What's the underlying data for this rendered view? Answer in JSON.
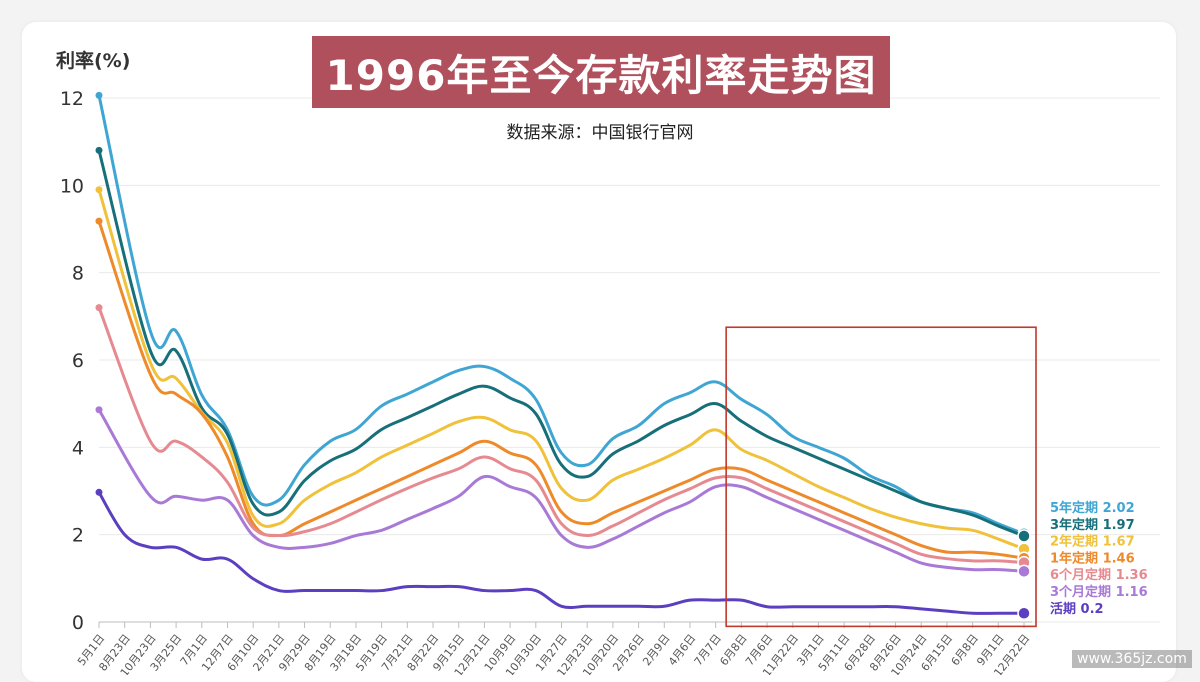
{
  "chart_data": {
    "type": "line",
    "title": "1996年至今存款利率走势图",
    "subtitle": "数据来源：中国银行官网",
    "ylabel": "利率(%)",
    "xlabel": "",
    "ylim": [
      0,
      12
    ],
    "y_ticks": [
      "0",
      "2",
      "4",
      "6",
      "8",
      "10",
      "12"
    ],
    "grid": true,
    "legend": "end-labels-right",
    "x_tick_labels": [
      "5月1日",
      "8月23日",
      "10月23日",
      "3月25日",
      "7月1日",
      "12月7日",
      "6月10日",
      "2月21日",
      "9月29日",
      "8月19日",
      "3月18日",
      "5月19日",
      "7月21日",
      "8月22日",
      "9月15日",
      "12月21日",
      "10月9日",
      "10月30日",
      "1月27日",
      "12月23日",
      "10月20日",
      "2月26日",
      "2月9日",
      "4月6日",
      "7月7日",
      "6月8日",
      "7月6日",
      "11月22日",
      "3月1日",
      "5月11日",
      "6月28日",
      "8月26日",
      "10月24日",
      "6月15日",
      "6月8日",
      "9月1日",
      "12月22日"
    ],
    "highlight_box": {
      "x_range_fraction": [
        0.678,
        1.0
      ],
      "y_range": [
        -0.1,
        6.75
      ],
      "color": "#c0392b"
    },
    "series": [
      {
        "name": "5年定期",
        "end_label": "2.02",
        "color": "#3fa6d3",
        "points": [
          [
            0,
            12.06
          ],
          [
            2,
            6.66
          ],
          [
            3,
            6.66
          ],
          [
            4,
            5.2
          ],
          [
            5,
            4.4
          ],
          [
            6,
            2.88
          ],
          [
            7,
            2.79
          ],
          [
            8,
            3.6
          ],
          [
            9,
            4.14
          ],
          [
            10,
            4.41
          ],
          [
            11,
            4.95
          ],
          [
            12,
            5.22
          ],
          [
            13,
            5.5
          ],
          [
            14,
            5.76
          ],
          [
            15,
            5.85
          ],
          [
            16,
            5.58
          ],
          [
            17,
            5.1
          ],
          [
            18,
            3.87
          ],
          [
            19,
            3.6
          ],
          [
            20,
            4.2
          ],
          [
            21,
            4.5
          ],
          [
            22,
            5.0
          ],
          [
            23,
            5.25
          ],
          [
            24,
            5.5
          ],
          [
            25,
            5.1
          ],
          [
            26,
            4.75
          ],
          [
            27,
            4.25
          ],
          [
            28,
            4.0
          ],
          [
            29,
            3.75
          ],
          [
            30,
            3.35
          ],
          [
            31,
            3.1
          ],
          [
            32,
            2.75
          ],
          [
            33,
            2.6
          ],
          [
            34,
            2.5
          ],
          [
            35,
            2.25
          ],
          [
            36,
            2.02
          ]
        ]
      },
      {
        "name": "3年定期",
        "end_label": "1.97",
        "color": "#176f7a",
        "points": [
          [
            0,
            10.8
          ],
          [
            2,
            6.21
          ],
          [
            3,
            6.21
          ],
          [
            4,
            4.9
          ],
          [
            5,
            4.3
          ],
          [
            6,
            2.7
          ],
          [
            7,
            2.52
          ],
          [
            8,
            3.24
          ],
          [
            9,
            3.69
          ],
          [
            10,
            3.96
          ],
          [
            11,
            4.41
          ],
          [
            12,
            4.68
          ],
          [
            13,
            4.95
          ],
          [
            14,
            5.22
          ],
          [
            15,
            5.4
          ],
          [
            16,
            5.13
          ],
          [
            17,
            4.77
          ],
          [
            18,
            3.6
          ],
          [
            19,
            3.33
          ],
          [
            20,
            3.85
          ],
          [
            21,
            4.15
          ],
          [
            22,
            4.5
          ],
          [
            23,
            4.75
          ],
          [
            24,
            5.0
          ],
          [
            25,
            4.6
          ],
          [
            26,
            4.25
          ],
          [
            27,
            4.0
          ],
          [
            28,
            3.75
          ],
          [
            29,
            3.5
          ],
          [
            30,
            3.25
          ],
          [
            31,
            3.0
          ],
          [
            32,
            2.75
          ],
          [
            33,
            2.6
          ],
          [
            34,
            2.45
          ],
          [
            35,
            2.2
          ],
          [
            36,
            1.97
          ]
        ]
      },
      {
        "name": "2年定期",
        "end_label": "1.67",
        "color": "#f0c13a",
        "points": [
          [
            0,
            9.9
          ],
          [
            2,
            5.94
          ],
          [
            3,
            5.58
          ],
          [
            4,
            4.8
          ],
          [
            5,
            4.1
          ],
          [
            6,
            2.43
          ],
          [
            7,
            2.25
          ],
          [
            8,
            2.79
          ],
          [
            9,
            3.15
          ],
          [
            10,
            3.42
          ],
          [
            11,
            3.78
          ],
          [
            12,
            4.05
          ],
          [
            13,
            4.32
          ],
          [
            14,
            4.59
          ],
          [
            15,
            4.68
          ],
          [
            16,
            4.4
          ],
          [
            17,
            4.15
          ],
          [
            18,
            3.06
          ],
          [
            19,
            2.79
          ],
          [
            20,
            3.25
          ],
          [
            21,
            3.5
          ],
          [
            22,
            3.75
          ],
          [
            23,
            4.05
          ],
          [
            24,
            4.4
          ],
          [
            25,
            3.95
          ],
          [
            26,
            3.7
          ],
          [
            27,
            3.4
          ],
          [
            28,
            3.1
          ],
          [
            29,
            2.85
          ],
          [
            30,
            2.6
          ],
          [
            31,
            2.4
          ],
          [
            32,
            2.25
          ],
          [
            33,
            2.15
          ],
          [
            34,
            2.1
          ],
          [
            35,
            1.9
          ],
          [
            36,
            1.67
          ]
        ]
      },
      {
        "name": "1年定期",
        "end_label": "1.46",
        "color": "#ee8a2a",
        "points": [
          [
            0,
            9.18
          ],
          [
            2,
            5.67
          ],
          [
            3,
            5.22
          ],
          [
            4,
            4.77
          ],
          [
            5,
            3.78
          ],
          [
            6,
            2.25
          ],
          [
            7,
            1.98
          ],
          [
            8,
            2.25
          ],
          [
            9,
            2.52
          ],
          [
            10,
            2.79
          ],
          [
            11,
            3.06
          ],
          [
            12,
            3.33
          ],
          [
            13,
            3.6
          ],
          [
            14,
            3.87
          ],
          [
            15,
            4.14
          ],
          [
            16,
            3.87
          ],
          [
            17,
            3.6
          ],
          [
            18,
            2.52
          ],
          [
            19,
            2.25
          ],
          [
            20,
            2.5
          ],
          [
            21,
            2.75
          ],
          [
            22,
            3.0
          ],
          [
            23,
            3.25
          ],
          [
            24,
            3.5
          ],
          [
            25,
            3.5
          ],
          [
            26,
            3.25
          ],
          [
            27,
            3.0
          ],
          [
            28,
            2.75
          ],
          [
            29,
            2.5
          ],
          [
            30,
            2.25
          ],
          [
            31,
            2.0
          ],
          [
            32,
            1.75
          ],
          [
            33,
            1.6
          ],
          [
            34,
            1.6
          ],
          [
            35,
            1.55
          ],
          [
            36,
            1.46
          ]
        ]
      },
      {
        "name": "6个月定期",
        "end_label": "1.36",
        "color": "#e68a91",
        "points": [
          [
            0,
            7.2
          ],
          [
            2,
            4.14
          ],
          [
            3,
            4.14
          ],
          [
            4,
            3.78
          ],
          [
            5,
            3.2
          ],
          [
            6,
            2.16
          ],
          [
            7,
            1.98
          ],
          [
            8,
            2.07
          ],
          [
            9,
            2.25
          ],
          [
            10,
            2.52
          ],
          [
            11,
            2.8
          ],
          [
            12,
            3.06
          ],
          [
            13,
            3.3
          ],
          [
            14,
            3.51
          ],
          [
            15,
            3.78
          ],
          [
            16,
            3.51
          ],
          [
            17,
            3.25
          ],
          [
            18,
            2.25
          ],
          [
            19,
            1.98
          ],
          [
            20,
            2.2
          ],
          [
            21,
            2.5
          ],
          [
            22,
            2.8
          ],
          [
            23,
            3.05
          ],
          [
            24,
            3.3
          ],
          [
            25,
            3.3
          ],
          [
            26,
            3.05
          ],
          [
            27,
            2.8
          ],
          [
            28,
            2.55
          ],
          [
            29,
            2.3
          ],
          [
            30,
            2.05
          ],
          [
            31,
            1.8
          ],
          [
            32,
            1.55
          ],
          [
            33,
            1.45
          ],
          [
            34,
            1.4
          ],
          [
            35,
            1.4
          ],
          [
            36,
            1.36
          ]
        ]
      },
      {
        "name": "3个月定期",
        "end_label": "1.16",
        "color": "#a879d6",
        "points": [
          [
            0,
            4.86
          ],
          [
            2,
            2.88
          ],
          [
            3,
            2.88
          ],
          [
            4,
            2.79
          ],
          [
            5,
            2.79
          ],
          [
            6,
            1.98
          ],
          [
            7,
            1.71
          ],
          [
            8,
            1.71
          ],
          [
            9,
            1.8
          ],
          [
            10,
            1.98
          ],
          [
            11,
            2.1
          ],
          [
            12,
            2.35
          ],
          [
            13,
            2.6
          ],
          [
            14,
            2.88
          ],
          [
            15,
            3.33
          ],
          [
            16,
            3.1
          ],
          [
            17,
            2.85
          ],
          [
            18,
            1.98
          ],
          [
            19,
            1.71
          ],
          [
            20,
            1.9
          ],
          [
            21,
            2.2
          ],
          [
            22,
            2.5
          ],
          [
            23,
            2.75
          ],
          [
            24,
            3.1
          ],
          [
            25,
            3.1
          ],
          [
            26,
            2.85
          ],
          [
            27,
            2.6
          ],
          [
            28,
            2.35
          ],
          [
            29,
            2.1
          ],
          [
            30,
            1.85
          ],
          [
            31,
            1.6
          ],
          [
            32,
            1.35
          ],
          [
            33,
            1.25
          ],
          [
            34,
            1.2
          ],
          [
            35,
            1.2
          ],
          [
            36,
            1.16
          ]
        ]
      },
      {
        "name": "活期",
        "end_label": "0.2",
        "color": "#5b3fc0",
        "points": [
          [
            0,
            2.97
          ],
          [
            1,
            2.0
          ],
          [
            2,
            1.71
          ],
          [
            3,
            1.71
          ],
          [
            4,
            1.44
          ],
          [
            5,
            1.44
          ],
          [
            6,
            0.99
          ],
          [
            7,
            0.72
          ],
          [
            8,
            0.72
          ],
          [
            9,
            0.72
          ],
          [
            10,
            0.72
          ],
          [
            11,
            0.72
          ],
          [
            12,
            0.81
          ],
          [
            13,
            0.81
          ],
          [
            14,
            0.81
          ],
          [
            15,
            0.72
          ],
          [
            16,
            0.72
          ],
          [
            17,
            0.72
          ],
          [
            18,
            0.36
          ],
          [
            19,
            0.36
          ],
          [
            20,
            0.36
          ],
          [
            21,
            0.36
          ],
          [
            22,
            0.36
          ],
          [
            23,
            0.5
          ],
          [
            24,
            0.5
          ],
          [
            25,
            0.5
          ],
          [
            26,
            0.35
          ],
          [
            27,
            0.35
          ],
          [
            28,
            0.35
          ],
          [
            29,
            0.35
          ],
          [
            30,
            0.35
          ],
          [
            31,
            0.35
          ],
          [
            32,
            0.3
          ],
          [
            33,
            0.25
          ],
          [
            34,
            0.2
          ],
          [
            35,
            0.2
          ],
          [
            36,
            0.2
          ]
        ]
      }
    ]
  },
  "watermark": "www.365jz.com"
}
